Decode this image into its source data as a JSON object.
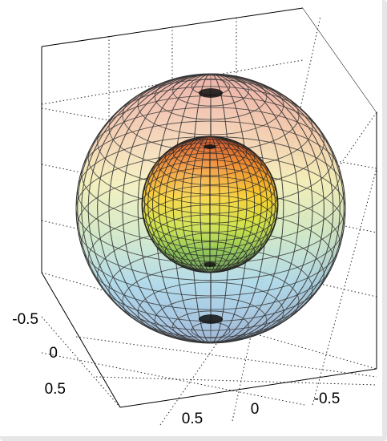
{
  "chart_data": {
    "type": "surface3d",
    "title": "",
    "xlabel": "",
    "ylabel": "",
    "zlabel": "",
    "grid": true,
    "colormap": "jet",
    "axes": {
      "left_axis": {
        "ticks": [
          -0.5,
          0,
          0.5
        ],
        "tick_labels": [
          "-0.5",
          "0",
          "0.5"
        ]
      },
      "bottom_axis": {
        "ticks": [
          0.5,
          0,
          -0.5
        ],
        "tick_labels": [
          "0.5",
          "0",
          "-0.5"
        ]
      }
    },
    "surfaces": [
      {
        "kind": "sphere",
        "radius": 1.0,
        "center": [
          0,
          0,
          0
        ],
        "face_alpha": "transparent",
        "mesh": "lat-long"
      },
      {
        "kind": "sphere",
        "radius": 0.5,
        "center": [
          0,
          0,
          0
        ],
        "face_alpha": "opaque",
        "mesh": "lat-long"
      }
    ]
  }
}
